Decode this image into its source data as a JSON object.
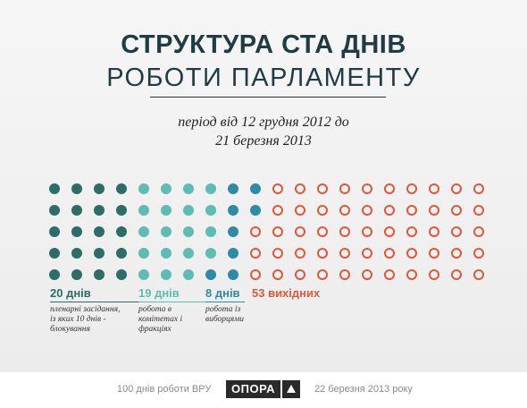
{
  "title_line1": "СТРУКТУРА СТА ДНІВ",
  "title_line2": "РОБОТИ ПАРЛАМЕНТУ",
  "subtitle_line1": "період від 12 грудня 2012 до",
  "subtitle_line2": "21 березня 2013",
  "categories": [
    {
      "count": 20,
      "label": "20 днів",
      "description": [
        "пленарні засідання,",
        "із яких 10 днів -",
        "блокування"
      ],
      "color": "#2d6d66",
      "filled": true
    },
    {
      "count": 19,
      "label": "19 днів",
      "description": [
        "робота в",
        "комітетах і",
        "фракціях"
      ],
      "color": "#5ebcb0",
      "filled": true
    },
    {
      "count": 8,
      "label": "8 днів",
      "description": [
        "робота із",
        "виборцями"
      ],
      "color": "#2f8ba5",
      "filled": true
    },
    {
      "count": 53,
      "label": "53 вихідних",
      "description": [],
      "color": "#e0583a",
      "filled": false
    }
  ],
  "footer": {
    "left": "100 днів роботи ВРУ",
    "logo": "ОПОРА",
    "right": "22 березня 2013 року"
  }
}
